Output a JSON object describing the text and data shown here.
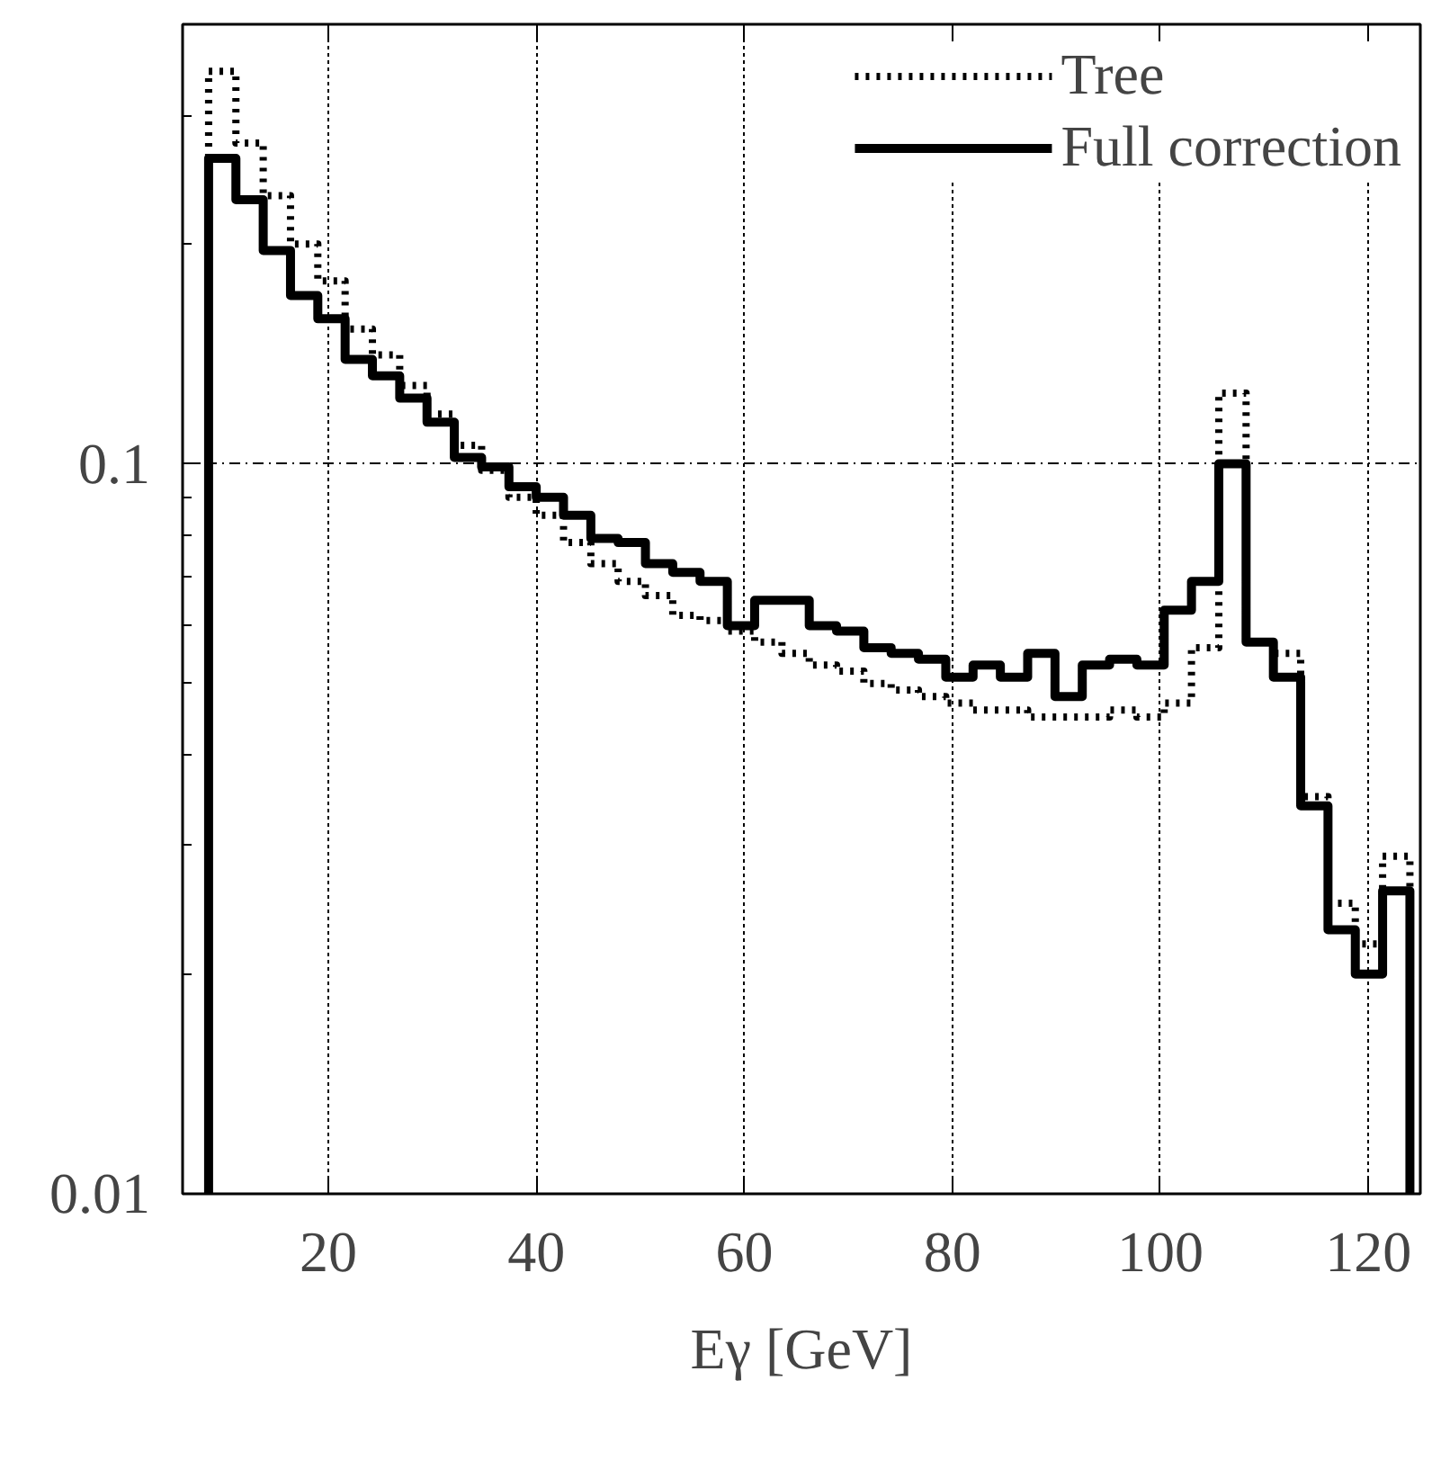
{
  "chart_data": {
    "type": "histogram",
    "xlabel": "Eγ [GeV]",
    "bins": [
      8.5,
      11.125,
      13.75,
      16.375,
      19.0,
      21.625,
      24.25,
      26.875,
      29.5,
      32.125,
      34.75,
      37.375,
      40.0,
      42.625,
      45.25,
      47.875,
      50.5,
      53.125,
      55.75,
      58.375,
      61.0,
      63.625,
      66.25,
      68.875,
      71.5,
      74.125,
      76.75,
      79.375,
      82.0,
      84.625,
      87.25,
      89.875,
      92.5,
      95.125,
      97.75,
      100.375,
      103.0,
      105.625,
      108.25,
      110.875,
      113.5,
      116.125,
      118.75,
      121.375,
      124.0
    ],
    "series": [
      {
        "name": "Tree",
        "color": "#000000",
        "line_style": "dotted",
        "values": [
          0.345,
          0.275,
          0.233,
          0.2,
          0.178,
          0.153,
          0.141,
          0.128,
          0.117,
          0.106,
          0.098,
          0.09,
          0.085,
          0.078,
          0.073,
          0.069,
          0.066,
          0.062,
          0.061,
          0.059,
          0.057,
          0.055,
          0.053,
          0.052,
          0.05,
          0.049,
          0.048,
          0.047,
          0.046,
          0.046,
          0.045,
          0.045,
          0.045,
          0.046,
          0.045,
          0.047,
          0.056,
          0.125,
          0.057,
          0.055,
          0.035,
          0.025,
          0.022,
          0.029
        ]
      },
      {
        "name": "Full correction",
        "color": "#000000",
        "line_style": "solid",
        "values": [
          0.262,
          0.23,
          0.196,
          0.17,
          0.158,
          0.139,
          0.132,
          0.123,
          0.114,
          0.102,
          0.099,
          0.093,
          0.09,
          0.085,
          0.079,
          0.078,
          0.073,
          0.071,
          0.069,
          0.06,
          0.065,
          0.065,
          0.06,
          0.059,
          0.056,
          0.055,
          0.054,
          0.051,
          0.053,
          0.051,
          0.055,
          0.048,
          0.053,
          0.054,
          0.053,
          0.063,
          0.069,
          0.1,
          0.057,
          0.051,
          0.034,
          0.023,
          0.02,
          0.026
        ]
      }
    ],
    "log": "y",
    "xlim": [
      6,
      125
    ],
    "ylim": [
      0.01,
      0.4
    ],
    "xticks": [
      20,
      40,
      60,
      80,
      100,
      120
    ],
    "yticks": [
      0.01,
      0.1
    ],
    "grid": true,
    "legend": "top right"
  }
}
